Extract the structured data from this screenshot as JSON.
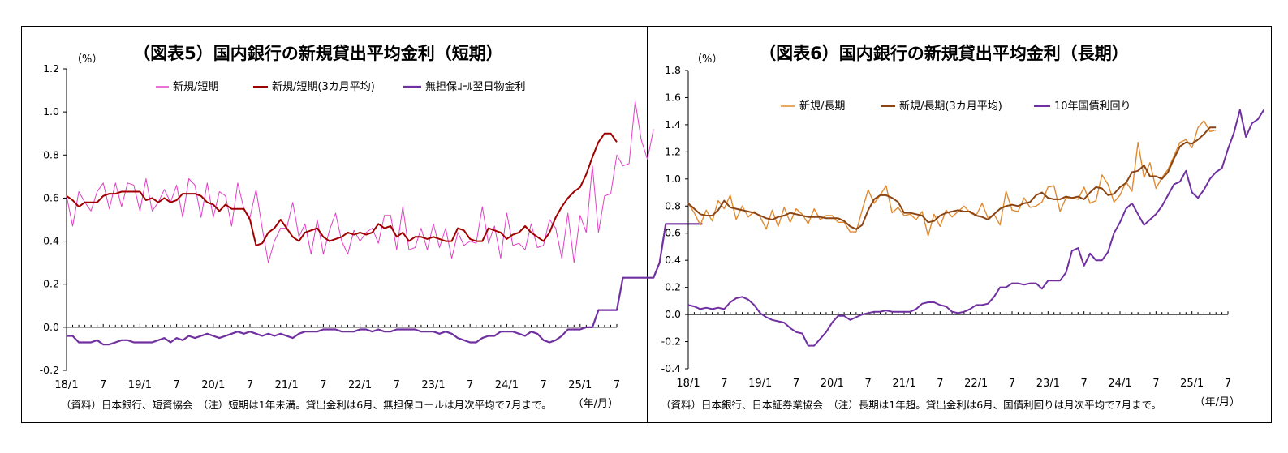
{
  "colors": {
    "c1_short": "#e040c8",
    "c1_short_avg": "#a00000",
    "c1_call": "#7030a0",
    "c2_long": "#e08a30",
    "c2_long_avg": "#8b4513",
    "c2_jgb": "#7030a0"
  },
  "chart_data": [
    {
      "type": "line",
      "title": "（図表5）国内銀行の新規貸出平均金利（短期）",
      "unit_label": "（%）",
      "x_unit_label": "（年/月）",
      "note": "（資料）日本銀行、短資協会　（注）短期は1年未満。貸出金利は6月、無担保コールは月次平均で7月まで。",
      "ylim": [
        -0.2,
        1.2
      ],
      "y_ticks": [
        "-0.2",
        "0.0",
        "0.2",
        "0.4",
        "0.6",
        "0.8",
        "1.0",
        "1.2"
      ],
      "x_ticks": [
        "18/1",
        "7",
        "19/1",
        "7",
        "20/1",
        "7",
        "21/1",
        "7",
        "22/1",
        "7",
        "23/1",
        "7",
        "24/1",
        "7",
        "25/1",
        "7"
      ],
      "series": [
        {
          "name": "新規/短期",
          "values": [
            0.61,
            0.47,
            0.63,
            0.58,
            0.54,
            0.63,
            0.67,
            0.55,
            0.67,
            0.56,
            0.67,
            0.66,
            0.54,
            0.69,
            0.54,
            0.58,
            0.64,
            0.58,
            0.66,
            0.51,
            0.69,
            0.66,
            0.51,
            0.67,
            0.51,
            0.63,
            0.61,
            0.47,
            0.67,
            0.55,
            0.51,
            0.64,
            0.46,
            0.3,
            0.4,
            0.46,
            0.46,
            0.58,
            0.42,
            0.48,
            0.34,
            0.5,
            0.34,
            0.45,
            0.53,
            0.4,
            0.34,
            0.45,
            0.4,
            0.44,
            0.46,
            0.39,
            0.52,
            0.52,
            0.36,
            0.56,
            0.36,
            0.37,
            0.46,
            0.36,
            0.48,
            0.37,
            0.46,
            0.32,
            0.44,
            0.38,
            0.4,
            0.39,
            0.56,
            0.39,
            0.47,
            0.32,
            0.53,
            0.38,
            0.39,
            0.36,
            0.48,
            0.37,
            0.38,
            0.5,
            0.46,
            0.32,
            0.53,
            0.3,
            0.52,
            0.44,
            0.75,
            0.44,
            0.61,
            0.62,
            0.8,
            0.75,
            0.76,
            1.05,
            0.87,
            0.78,
            0.92
          ]
        },
        {
          "name": "新規/短期(3カ月平均)",
          "values": [
            0.61,
            0.59,
            0.56,
            0.58,
            0.58,
            0.58,
            0.61,
            0.62,
            0.62,
            0.63,
            0.63,
            0.63,
            0.63,
            0.59,
            0.6,
            0.58,
            0.6,
            0.58,
            0.59,
            0.62,
            0.62,
            0.62,
            0.61,
            0.58,
            0.57,
            0.54,
            0.57,
            0.55,
            0.55,
            0.55,
            0.5,
            0.38,
            0.39,
            0.44,
            0.46,
            0.5,
            0.46,
            0.42,
            0.4,
            0.44,
            0.45,
            0.46,
            0.42,
            0.4,
            0.41,
            0.42,
            0.44,
            0.43,
            0.44,
            0.43,
            0.44,
            0.48,
            0.46,
            0.47,
            0.42,
            0.44,
            0.4,
            0.42,
            0.42,
            0.41,
            0.42,
            0.41,
            0.4,
            0.4,
            0.46,
            0.45,
            0.41,
            0.4,
            0.4,
            0.46,
            0.45,
            0.44,
            0.41,
            0.43,
            0.44,
            0.47,
            0.44,
            0.42,
            0.4,
            0.44,
            0.51,
            0.56,
            0.6,
            0.63,
            0.65,
            0.71,
            0.79,
            0.86,
            0.9,
            0.9,
            0.86
          ]
        },
        {
          "name": "無担保ｺｰﾙ翌日物金利",
          "values": [
            -0.04,
            -0.04,
            -0.07,
            -0.07,
            -0.07,
            -0.06,
            -0.08,
            -0.08,
            -0.07,
            -0.06,
            -0.06,
            -0.07,
            -0.07,
            -0.07,
            -0.07,
            -0.06,
            -0.05,
            -0.07,
            -0.05,
            -0.06,
            -0.04,
            -0.05,
            -0.04,
            -0.03,
            -0.04,
            -0.05,
            -0.04,
            -0.03,
            -0.02,
            -0.03,
            -0.02,
            -0.03,
            -0.04,
            -0.03,
            -0.04,
            -0.03,
            -0.04,
            -0.05,
            -0.03,
            -0.02,
            -0.02,
            -0.02,
            -0.01,
            -0.01,
            -0.01,
            -0.02,
            -0.02,
            -0.02,
            -0.01,
            -0.01,
            -0.02,
            -0.01,
            -0.02,
            -0.02,
            -0.01,
            -0.01,
            -0.01,
            -0.01,
            -0.02,
            -0.02,
            -0.02,
            -0.03,
            -0.02,
            -0.03,
            -0.05,
            -0.06,
            -0.07,
            -0.07,
            -0.05,
            -0.04,
            -0.04,
            -0.02,
            -0.02,
            -0.02,
            -0.03,
            -0.04,
            -0.02,
            -0.03,
            -0.06,
            -0.07,
            -0.06,
            -0.04,
            -0.01,
            -0.01,
            -0.01,
            0.0,
            0.0,
            0.08,
            0.08,
            0.08,
            0.08,
            0.23,
            0.23,
            0.23,
            0.23,
            0.23,
            0.23,
            0.3,
            0.48,
            0.48,
            0.48,
            0.48,
            0.48,
            0.48,
            0.48
          ]
        }
      ]
    },
    {
      "type": "line",
      "title": "（図表6）国内銀行の新規貸出平均金利（長期）",
      "unit_label": "（%）",
      "x_unit_label": "（年/月）",
      "note": "（資料）日本銀行、日本証券業協会　（注）長期は1年超。貸出金利は6月、国債利回りは月次平均で7月まで。",
      "ylim": [
        -0.4,
        1.8
      ],
      "y_ticks": [
        "-0.4",
        "-0.2",
        "0.0",
        "0.2",
        "0.4",
        "0.6",
        "0.8",
        "1.0",
        "1.2",
        "1.4",
        "1.6",
        "1.8"
      ],
      "x_ticks": [
        "18/1",
        "7",
        "19/1",
        "7",
        "20/1",
        "7",
        "21/1",
        "7",
        "22/1",
        "7",
        "23/1",
        "7",
        "24/1",
        "7",
        "25/1",
        "7"
      ],
      "series": [
        {
          "name": "新規/長期",
          "values": [
            0.82,
            0.75,
            0.66,
            0.77,
            0.69,
            0.84,
            0.78,
            0.88,
            0.7,
            0.8,
            0.72,
            0.76,
            0.72,
            0.63,
            0.77,
            0.65,
            0.79,
            0.68,
            0.78,
            0.74,
            0.67,
            0.78,
            0.7,
            0.73,
            0.73,
            0.68,
            0.68,
            0.61,
            0.61,
            0.77,
            0.92,
            0.82,
            0.88,
            0.95,
            0.75,
            0.79,
            0.73,
            0.74,
            0.7,
            0.76,
            0.58,
            0.74,
            0.65,
            0.77,
            0.72,
            0.76,
            0.8,
            0.75,
            0.73,
            0.82,
            0.71,
            0.74,
            0.66,
            0.91,
            0.77,
            0.76,
            0.86,
            0.79,
            0.8,
            0.83,
            0.94,
            0.95,
            0.76,
            0.86,
            0.86,
            0.85,
            0.94,
            0.82,
            0.84,
            1.03,
            0.96,
            0.83,
            0.88,
            0.98,
            0.91,
            1.27,
            1.01,
            1.12,
            0.93,
            1.01,
            1.07,
            1.17,
            1.27,
            1.29,
            1.23,
            1.38,
            1.43,
            1.35,
            1.36
          ]
        },
        {
          "name": "新規/長期(3カ月平均)",
          "values": [
            0.82,
            0.78,
            0.74,
            0.73,
            0.73,
            0.77,
            0.84,
            0.79,
            0.78,
            0.77,
            0.76,
            0.75,
            0.73,
            0.71,
            0.7,
            0.72,
            0.73,
            0.75,
            0.74,
            0.73,
            0.72,
            0.72,
            0.72,
            0.71,
            0.71,
            0.71,
            0.69,
            0.65,
            0.63,
            0.66,
            0.77,
            0.85,
            0.88,
            0.88,
            0.86,
            0.83,
            0.75,
            0.75,
            0.74,
            0.73,
            0.68,
            0.69,
            0.73,
            0.75,
            0.76,
            0.77,
            0.76,
            0.76,
            0.73,
            0.72,
            0.7,
            0.74,
            0.78,
            0.8,
            0.81,
            0.8,
            0.82,
            0.83,
            0.88,
            0.9,
            0.86,
            0.85,
            0.85,
            0.87,
            0.86,
            0.87,
            0.85,
            0.9,
            0.94,
            0.93,
            0.88,
            0.89,
            0.94,
            0.97,
            1.05,
            1.06,
            1.1,
            1.02,
            1.02,
            1.0,
            1.05,
            1.15,
            1.24,
            1.27,
            1.26,
            1.29,
            1.33,
            1.38,
            1.38
          ]
        },
        {
          "name": "10年国債利回り",
          "values": [
            0.07,
            0.06,
            0.04,
            0.05,
            0.04,
            0.05,
            0.04,
            0.09,
            0.12,
            0.13,
            0.11,
            0.07,
            0.01,
            -0.02,
            -0.04,
            -0.05,
            -0.06,
            -0.1,
            -0.13,
            -0.14,
            -0.23,
            -0.23,
            -0.18,
            -0.13,
            -0.06,
            -0.01,
            -0.01,
            -0.04,
            -0.02,
            0.0,
            0.01,
            0.02,
            0.02,
            0.03,
            0.02,
            0.02,
            0.02,
            0.02,
            0.04,
            0.08,
            0.09,
            0.09,
            0.07,
            0.06,
            0.02,
            0.01,
            0.02,
            0.04,
            0.07,
            0.07,
            0.08,
            0.13,
            0.2,
            0.2,
            0.23,
            0.23,
            0.22,
            0.23,
            0.23,
            0.19,
            0.25,
            0.25,
            0.25,
            0.31,
            0.47,
            0.49,
            0.36,
            0.45,
            0.4,
            0.4,
            0.46,
            0.6,
            0.68,
            0.78,
            0.82,
            0.74,
            0.66,
            0.7,
            0.74,
            0.8,
            0.88,
            0.96,
            0.98,
            1.06,
            0.9,
            0.86,
            0.92,
            1.0,
            1.05,
            1.08,
            1.22,
            1.34,
            1.51,
            1.31,
            1.41,
            1.44,
            1.51
          ]
        }
      ]
    }
  ]
}
